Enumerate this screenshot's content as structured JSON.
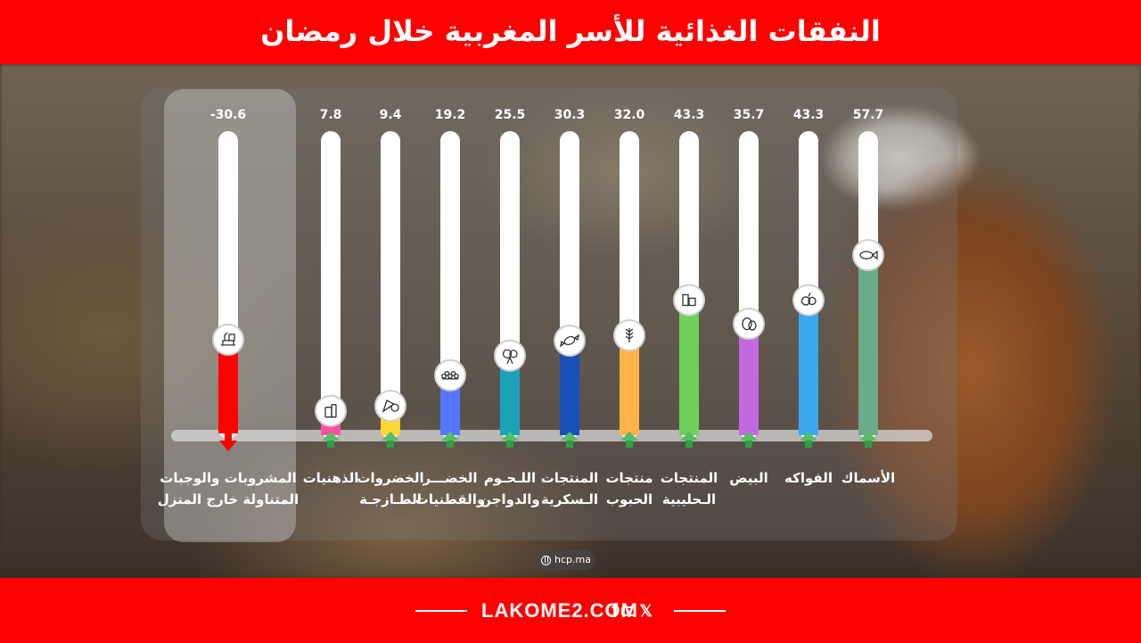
{
  "header": {
    "title": "النفقات الغذائية للأسر المغربية خلال رمضان"
  },
  "source": {
    "text": "hcp.ma",
    "icon": "globe-icon"
  },
  "footer": {
    "brand": "LAKOME2.COM",
    "social_icons": [
      "facebook-icon",
      "youtube-icon",
      "x-icon"
    ]
  },
  "colors": {
    "header": "#ff0000",
    "track": "#ffffff",
    "arrow_up": "#2ea043",
    "arrow_down": "#ff0000"
  },
  "chart_data": {
    "type": "bar",
    "orientation": "vertical",
    "ylim": [
      -40,
      60
    ],
    "categories": [
      {
        "label_lines": [
          "الأسماك"
        ],
        "value": 57.7,
        "value_label": "57.7",
        "color": "#6aab8a",
        "icon": "fish-icon"
      },
      {
        "label_lines": [
          "الفواكه"
        ],
        "value": 43.3,
        "value_label": "43.3",
        "color": "#3aa8f0",
        "icon": "fruits-icon"
      },
      {
        "label_lines": [
          "البيض"
        ],
        "value": 35.7,
        "value_label": "35.7",
        "color": "#c46ae0",
        "icon": "eggs-icon"
      },
      {
        "label_lines": [
          "المنتجات",
          "الـحليبية"
        ],
        "value": 43.3,
        "value_label": "43.3",
        "color": "#6fd15a",
        "icon": "dairy-icon"
      },
      {
        "label_lines": [
          "منتجات",
          "الحبوب"
        ],
        "value": 32.0,
        "value_label": "32.0",
        "color": "#ffb347",
        "icon": "wheat-icon"
      },
      {
        "label_lines": [
          "المنتجات",
          "الـسكرية"
        ],
        "value": 30.3,
        "value_label": "30.3",
        "color": "#1a4fb8",
        "icon": "candy-icon"
      },
      {
        "label_lines": [
          "اللـحـوم",
          "والدواجن"
        ],
        "value": 25.5,
        "value_label": "25.5",
        "color": "#1aa3b8",
        "icon": "meat-icon"
      },
      {
        "label_lines": [
          "الخضـــر",
          "والقطنيات"
        ],
        "value": 19.2,
        "value_label": "19.2",
        "color": "#5577ff",
        "icon": "legumes-icon"
      },
      {
        "label_lines": [
          "الخضروات",
          "الطـازجـة"
        ],
        "value": 9.4,
        "value_label": "9.4",
        "color": "#ffd633",
        "icon": "vegetables-icon"
      },
      {
        "label_lines": [
          "الذهنيات"
        ],
        "value": 7.8,
        "value_label": "7.8",
        "color": "#ff4fa3",
        "icon": "fats-icon"
      },
      {
        "label_lines": [
          "المشروبات والوجبات",
          "المتناولة خارج المنزل"
        ],
        "value": -30.6,
        "value_label": "-30.6",
        "color": "#ff0000",
        "icon": "takeaway-icon"
      }
    ]
  }
}
